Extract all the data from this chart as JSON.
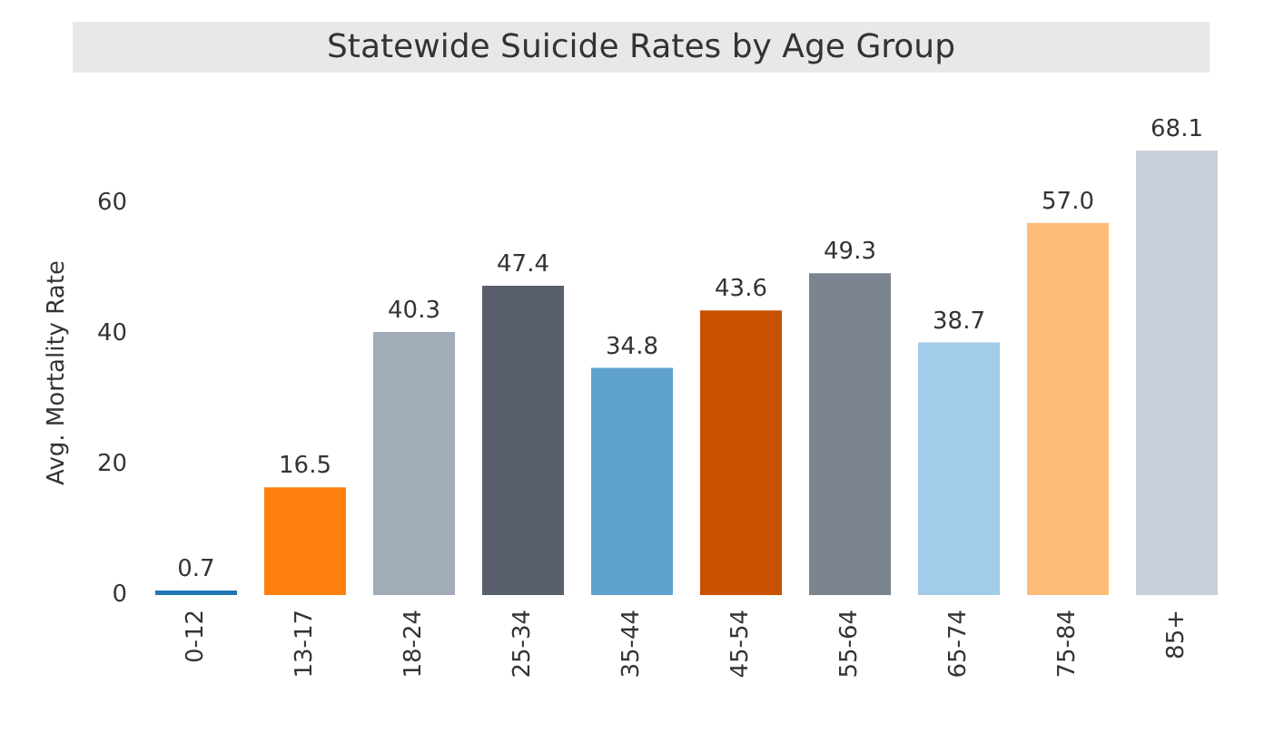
{
  "chart_data": {
    "type": "bar",
    "title": "Statewide Suicide Rates by Age Group",
    "ylabel": "Avg. Mortality Rate",
    "categories": [
      "0-12",
      "13-17",
      "18-24",
      "25-34",
      "35-44",
      "45-54",
      "55-64",
      "65-74",
      "75-84",
      "85+"
    ],
    "values": [
      0.7,
      16.5,
      40.3,
      47.4,
      34.8,
      43.6,
      49.3,
      38.7,
      57.0,
      68.1
    ],
    "value_labels": [
      "0.7",
      "16.5",
      "40.3",
      "47.4",
      "34.8",
      "43.6",
      "49.3",
      "38.7",
      "57.0",
      "68.1"
    ],
    "colors": [
      "#1f77b4",
      "#ff800e",
      "#a2acb8",
      "#595f6b",
      "#5fa2ce",
      "#c85200",
      "#7b848f",
      "#a3cce9",
      "#ffbc79",
      "#c8d0d9"
    ],
    "ylim": [
      0,
      68.1
    ],
    "yticks": [
      0,
      20,
      40,
      60
    ],
    "grid": false
  }
}
